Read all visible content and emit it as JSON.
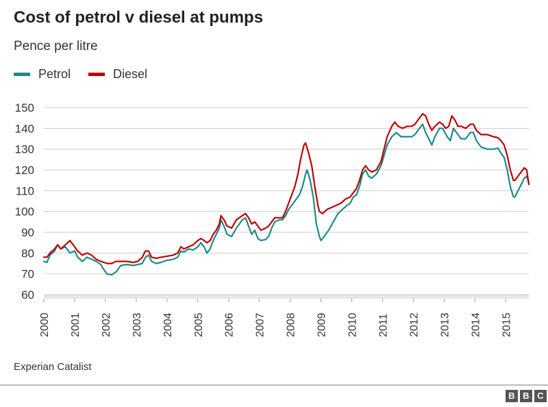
{
  "header": {
    "title": "Cost of petrol v diesel at pumps",
    "subtitle": "Pence per litre"
  },
  "footer": {
    "source": "Experian Catalist",
    "logo_letters": [
      "B",
      "B",
      "C"
    ]
  },
  "chart_data": {
    "type": "line",
    "title": "Cost of petrol v diesel at pumps",
    "subtitle": "Pence per litre",
    "xlabel": "",
    "ylabel": "",
    "xlim": [
      2000,
      2015.75
    ],
    "ylim": [
      60,
      150
    ],
    "yticks": [
      60,
      70,
      80,
      90,
      100,
      110,
      120,
      130,
      140,
      150
    ],
    "xticks": [
      "2000",
      "2001",
      "2002",
      "2003",
      "2004",
      "2005",
      "2006",
      "2007",
      "2008",
      "2009",
      "2010",
      "2011",
      "2012",
      "2013",
      "2014",
      "2015"
    ],
    "grid": "horizontal",
    "legend_position": "top-left",
    "series": [
      {
        "name": "Petrol",
        "color": "#1b8a8a",
        "points": [
          [
            2000.0,
            76
          ],
          [
            2000.1,
            75.5
          ],
          [
            2000.2,
            79
          ],
          [
            2000.35,
            81
          ],
          [
            2000.45,
            84
          ],
          [
            2000.55,
            82
          ],
          [
            2000.7,
            83
          ],
          [
            2000.85,
            80
          ],
          [
            2001.0,
            81
          ],
          [
            2001.1,
            78
          ],
          [
            2001.25,
            76
          ],
          [
            2001.4,
            78
          ],
          [
            2001.55,
            77
          ],
          [
            2001.7,
            76
          ],
          [
            2001.85,
            74.5
          ],
          [
            2001.95,
            72
          ],
          [
            2002.05,
            70
          ],
          [
            2002.2,
            69.5
          ],
          [
            2002.35,
            71
          ],
          [
            2002.5,
            74
          ],
          [
            2002.7,
            74.5
          ],
          [
            2002.9,
            74
          ],
          [
            2003.05,
            74.5
          ],
          [
            2003.2,
            75
          ],
          [
            2003.3,
            78
          ],
          [
            2003.4,
            79
          ],
          [
            2003.5,
            76
          ],
          [
            2003.65,
            75
          ],
          [
            2003.8,
            75.5
          ],
          [
            2004.0,
            76.5
          ],
          [
            2004.2,
            77
          ],
          [
            2004.35,
            78
          ],
          [
            2004.45,
            81
          ],
          [
            2004.55,
            80.5
          ],
          [
            2004.7,
            82
          ],
          [
            2004.85,
            81.5
          ],
          [
            2005.0,
            83
          ],
          [
            2005.1,
            85
          ],
          [
            2005.2,
            83
          ],
          [
            2005.3,
            80
          ],
          [
            2005.4,
            82
          ],
          [
            2005.5,
            86
          ],
          [
            2005.6,
            89
          ],
          [
            2005.7,
            92
          ],
          [
            2005.75,
            96
          ],
          [
            2005.85,
            93
          ],
          [
            2005.95,
            89
          ],
          [
            2006.1,
            88
          ],
          [
            2006.25,
            92
          ],
          [
            2006.35,
            94
          ],
          [
            2006.45,
            96
          ],
          [
            2006.55,
            97
          ],
          [
            2006.65,
            93
          ],
          [
            2006.75,
            89
          ],
          [
            2006.85,
            91
          ],
          [
            2006.95,
            87
          ],
          [
            2007.05,
            86
          ],
          [
            2007.2,
            86.5
          ],
          [
            2007.3,
            88
          ],
          [
            2007.4,
            92
          ],
          [
            2007.5,
            95
          ],
          [
            2007.65,
            96
          ],
          [
            2007.75,
            96
          ],
          [
            2007.85,
            98
          ],
          [
            2007.95,
            101
          ],
          [
            2008.05,
            103
          ],
          [
            2008.15,
            105
          ],
          [
            2008.3,
            108
          ],
          [
            2008.4,
            112
          ],
          [
            2008.5,
            118
          ],
          [
            2008.55,
            120
          ],
          [
            2008.65,
            115
          ],
          [
            2008.75,
            107
          ],
          [
            2008.85,
            94
          ],
          [
            2008.95,
            88
          ],
          [
            2009.0,
            86
          ],
          [
            2009.1,
            88
          ],
          [
            2009.25,
            91
          ],
          [
            2009.4,
            95
          ],
          [
            2009.55,
            99
          ],
          [
            2009.7,
            101
          ],
          [
            2009.85,
            103
          ],
          [
            2009.95,
            104
          ],
          [
            2010.05,
            107
          ],
          [
            2010.15,
            108
          ],
          [
            2010.25,
            112
          ],
          [
            2010.35,
            118
          ],
          [
            2010.45,
            120
          ],
          [
            2010.55,
            117
          ],
          [
            2010.65,
            116
          ],
          [
            2010.8,
            118
          ],
          [
            2010.95,
            122
          ],
          [
            2011.05,
            127
          ],
          [
            2011.15,
            132
          ],
          [
            2011.3,
            136
          ],
          [
            2011.45,
            138
          ],
          [
            2011.6,
            136
          ],
          [
            2011.8,
            136
          ],
          [
            2011.95,
            136
          ],
          [
            2012.05,
            137
          ],
          [
            2012.2,
            140
          ],
          [
            2012.3,
            142
          ],
          [
            2012.4,
            138
          ],
          [
            2012.5,
            135
          ],
          [
            2012.6,
            132
          ],
          [
            2012.7,
            136
          ],
          [
            2012.85,
            140
          ],
          [
            2012.95,
            140
          ],
          [
            2013.1,
            136
          ],
          [
            2013.2,
            134
          ],
          [
            2013.3,
            140
          ],
          [
            2013.45,
            137
          ],
          [
            2013.55,
            135
          ],
          [
            2013.7,
            135
          ],
          [
            2013.85,
            138
          ],
          [
            2013.95,
            138
          ],
          [
            2014.05,
            134
          ],
          [
            2014.2,
            131
          ],
          [
            2014.4,
            130
          ],
          [
            2014.6,
            130
          ],
          [
            2014.75,
            130.5
          ],
          [
            2014.85,
            128
          ],
          [
            2014.95,
            126
          ],
          [
            2015.05,
            120
          ],
          [
            2015.15,
            112
          ],
          [
            2015.25,
            107
          ],
          [
            2015.3,
            107
          ],
          [
            2015.4,
            110
          ],
          [
            2015.5,
            113
          ],
          [
            2015.6,
            116
          ],
          [
            2015.68,
            117
          ],
          [
            2015.75,
            114
          ]
        ]
      },
      {
        "name": "Diesel",
        "color": "#c00000",
        "points": [
          [
            2000.0,
            78
          ],
          [
            2000.1,
            78
          ],
          [
            2000.2,
            80
          ],
          [
            2000.35,
            82
          ],
          [
            2000.45,
            84
          ],
          [
            2000.55,
            82
          ],
          [
            2000.7,
            84
          ],
          [
            2000.85,
            86
          ],
          [
            2000.95,
            84
          ],
          [
            2001.1,
            81
          ],
          [
            2001.25,
            79
          ],
          [
            2001.4,
            80
          ],
          [
            2001.55,
            79
          ],
          [
            2001.7,
            77
          ],
          [
            2001.85,
            76
          ],
          [
            2001.95,
            75.5
          ],
          [
            2002.05,
            75
          ],
          [
            2002.2,
            75
          ],
          [
            2002.35,
            76
          ],
          [
            2002.5,
            76
          ],
          [
            2002.7,
            76
          ],
          [
            2002.9,
            75.5
          ],
          [
            2003.05,
            76
          ],
          [
            2003.2,
            78
          ],
          [
            2003.3,
            81
          ],
          [
            2003.4,
            81
          ],
          [
            2003.5,
            78
          ],
          [
            2003.65,
            77.5
          ],
          [
            2003.8,
            78
          ],
          [
            2004.0,
            78.5
          ],
          [
            2004.2,
            79
          ],
          [
            2004.35,
            80
          ],
          [
            2004.45,
            83
          ],
          [
            2004.55,
            82
          ],
          [
            2004.7,
            83
          ],
          [
            2004.85,
            84
          ],
          [
            2005.0,
            86
          ],
          [
            2005.1,
            87
          ],
          [
            2005.2,
            86
          ],
          [
            2005.3,
            85
          ],
          [
            2005.4,
            86
          ],
          [
            2005.5,
            89
          ],
          [
            2005.6,
            91
          ],
          [
            2005.7,
            94
          ],
          [
            2005.75,
            98
          ],
          [
            2005.85,
            96
          ],
          [
            2005.95,
            93
          ],
          [
            2006.1,
            92
          ],
          [
            2006.25,
            96
          ],
          [
            2006.35,
            97
          ],
          [
            2006.45,
            98
          ],
          [
            2006.55,
            99
          ],
          [
            2006.65,
            97
          ],
          [
            2006.75,
            94
          ],
          [
            2006.85,
            95
          ],
          [
            2006.95,
            93
          ],
          [
            2007.05,
            91
          ],
          [
            2007.2,
            92
          ],
          [
            2007.3,
            93
          ],
          [
            2007.4,
            95
          ],
          [
            2007.5,
            97
          ],
          [
            2007.65,
            97
          ],
          [
            2007.75,
            97
          ],
          [
            2007.85,
            100
          ],
          [
            2007.95,
            104
          ],
          [
            2008.05,
            108
          ],
          [
            2008.15,
            112
          ],
          [
            2008.25,
            118
          ],
          [
            2008.35,
            126
          ],
          [
            2008.45,
            132
          ],
          [
            2008.5,
            133
          ],
          [
            2008.6,
            128
          ],
          [
            2008.7,
            122
          ],
          [
            2008.8,
            112
          ],
          [
            2008.9,
            103
          ],
          [
            2008.95,
            100
          ],
          [
            2009.05,
            99
          ],
          [
            2009.2,
            101
          ],
          [
            2009.35,
            102
          ],
          [
            2009.5,
            103
          ],
          [
            2009.65,
            104
          ],
          [
            2009.8,
            106
          ],
          [
            2009.95,
            107
          ],
          [
            2010.05,
            109
          ],
          [
            2010.15,
            111
          ],
          [
            2010.25,
            115
          ],
          [
            2010.35,
            120
          ],
          [
            2010.45,
            122
          ],
          [
            2010.55,
            120
          ],
          [
            2010.65,
            119
          ],
          [
            2010.8,
            120
          ],
          [
            2010.95,
            124
          ],
          [
            2011.05,
            130
          ],
          [
            2011.15,
            136
          ],
          [
            2011.3,
            141
          ],
          [
            2011.4,
            143
          ],
          [
            2011.5,
            141
          ],
          [
            2011.65,
            140
          ],
          [
            2011.8,
            141
          ],
          [
            2011.95,
            141
          ],
          [
            2012.05,
            142
          ],
          [
            2012.2,
            145
          ],
          [
            2012.3,
            147
          ],
          [
            2012.4,
            146
          ],
          [
            2012.5,
            142
          ],
          [
            2012.6,
            139
          ],
          [
            2012.7,
            141
          ],
          [
            2012.85,
            143
          ],
          [
            2012.95,
            142
          ],
          [
            2013.05,
            140
          ],
          [
            2013.15,
            141
          ],
          [
            2013.25,
            146
          ],
          [
            2013.35,
            144
          ],
          [
            2013.45,
            141
          ],
          [
            2013.55,
            141
          ],
          [
            2013.7,
            140
          ],
          [
            2013.85,
            142
          ],
          [
            2013.95,
            142
          ],
          [
            2014.05,
            139
          ],
          [
            2014.2,
            137
          ],
          [
            2014.4,
            137
          ],
          [
            2014.6,
            136
          ],
          [
            2014.75,
            135.5
          ],
          [
            2014.85,
            134
          ],
          [
            2014.95,
            132
          ],
          [
            2015.05,
            127
          ],
          [
            2015.15,
            120
          ],
          [
            2015.25,
            115
          ],
          [
            2015.3,
            115
          ],
          [
            2015.4,
            117
          ],
          [
            2015.5,
            119
          ],
          [
            2015.6,
            121
          ],
          [
            2015.68,
            120
          ],
          [
            2015.75,
            113
          ]
        ]
      }
    ]
  }
}
